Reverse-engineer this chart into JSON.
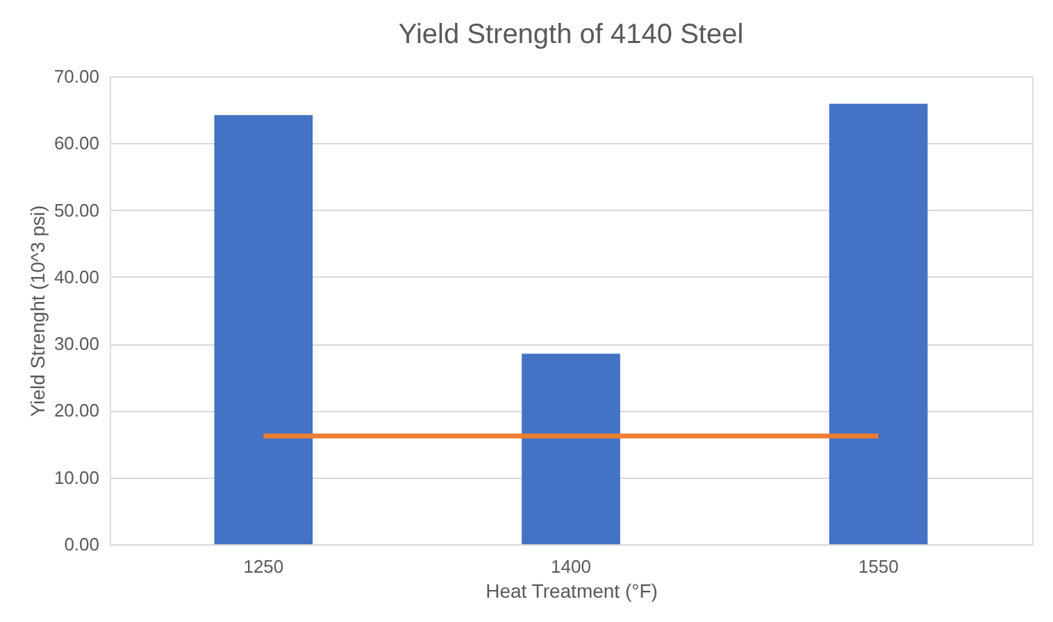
{
  "chart_data": {
    "type": "bar",
    "title": "Yield Strength of 4140 Steel",
    "xlabel": "Heat Treatment (°F)",
    "ylabel": "Yield Strenght (10^3 psi)",
    "categories": [
      "1250",
      "1400",
      "1550"
    ],
    "series": [
      {
        "color": "#4472c4",
        "values": [
          64.2,
          28.5,
          65.9
        ]
      },
      {
        "type": "line",
        "color": "#ed7d31",
        "values": [
          16.2,
          16.2,
          16.2
        ],
        "marker": "none",
        "line_style": "solid"
      }
    ],
    "ylim": [
      0,
      70
    ],
    "yticks": [
      {
        "value": 0,
        "label": "0.00"
      },
      {
        "value": 10,
        "label": "10.00"
      },
      {
        "value": 20,
        "label": "20.00"
      },
      {
        "value": 30,
        "label": "30.00"
      },
      {
        "value": 40,
        "label": "40.00"
      },
      {
        "value": 50,
        "label": "50.00"
      },
      {
        "value": 60,
        "label": "60.00"
      },
      {
        "value": 70,
        "label": "70.00"
      }
    ],
    "grid": "y"
  }
}
